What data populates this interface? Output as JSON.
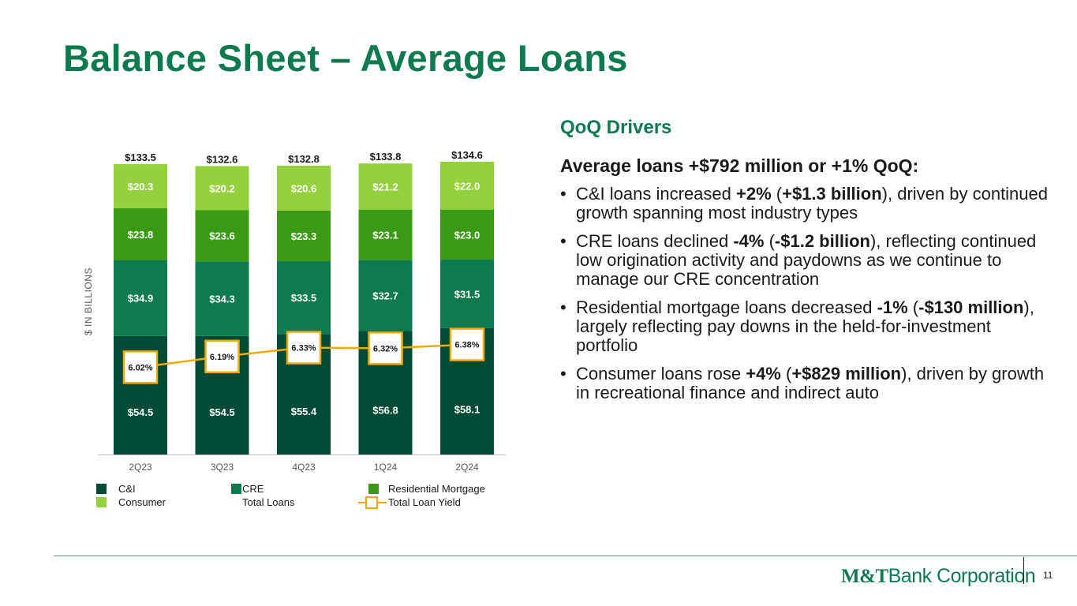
{
  "title": "Balance Sheet – Average Loans",
  "chart_data": {
    "type": "bar",
    "stacked": true,
    "ylabel": "$ IN BILLIONS",
    "categories": [
      "2Q23",
      "3Q23",
      "4Q23",
      "1Q24",
      "2Q24"
    ],
    "series": [
      {
        "name": "C&I",
        "color": "#004b35",
        "values": [
          54.5,
          54.5,
          55.4,
          56.8,
          58.1
        ]
      },
      {
        "name": "CRE",
        "color": "#0e7a4f",
        "values": [
          34.9,
          34.3,
          33.5,
          32.7,
          31.5
        ]
      },
      {
        "name": "Residential Mortgage",
        "color": "#3a9a14",
        "values": [
          23.8,
          23.6,
          23.3,
          23.1,
          23.0
        ]
      },
      {
        "name": "Consumer",
        "color": "#95d13c",
        "values": [
          20.3,
          20.2,
          20.6,
          21.2,
          22.0
        ]
      }
    ],
    "totals": {
      "name": "Total Loans",
      "values": [
        133.5,
        132.6,
        132.8,
        133.8,
        134.6
      ]
    },
    "yield": {
      "name": "Total Loan Yield",
      "color": "#f2a900",
      "values": [
        6.02,
        6.19,
        6.33,
        6.32,
        6.38
      ]
    },
    "value_labels": {
      "C&I": [
        "$54.5",
        "$54.5",
        "$55.4",
        "$56.8",
        "$58.1"
      ],
      "CRE": [
        "$34.9",
        "$34.3",
        "$33.5",
        "$32.7",
        "$31.5"
      ],
      "Residential Mortgage": [
        "$23.8",
        "$23.6",
        "$23.3",
        "$23.1",
        "$23.0"
      ],
      "Consumer": [
        "$20.3",
        "$20.2",
        "$20.6",
        "$21.2",
        "$22.0"
      ],
      "totals": [
        "$133.5",
        "$132.6",
        "$132.8",
        "$133.8",
        "$134.6"
      ],
      "yield": [
        "6.02%",
        "6.19%",
        "6.33%",
        "6.32%",
        "6.38%"
      ]
    },
    "ylim": [
      0,
      134.6
    ],
    "grid": false,
    "legend_position": "bottom"
  },
  "legend": {
    "items": [
      "C&I",
      "CRE",
      "Residential Mortgage",
      "Consumer",
      "Total Loans",
      "Total Loan Yield"
    ]
  },
  "drivers": {
    "title": "QoQ Drivers",
    "heading": "Average loans +$792 million or +1% QoQ:",
    "bullet_char": "•",
    "bullets": [
      {
        "pre": "C&I loans increased ",
        "b1": "+2%",
        "mid1": " (",
        "b2": "+$1.3 billion",
        "post": "), driven by continued growth spanning most industry types"
      },
      {
        "pre": "CRE loans declined ",
        "b1": "-4%",
        "mid1": " (",
        "b2": "-$1.2 billion",
        "post": "), reflecting continued low origination activity and paydowns as we continue to manage our CRE concentration"
      },
      {
        "pre": "Residential mortgage loans decreased ",
        "b1": "-1%",
        "mid1": " (",
        "b2": "-$130 million",
        "post": "), largely reflecting pay downs in the held-for-investment portfolio"
      },
      {
        "pre": "Consumer loans rose ",
        "b1": "+4%",
        "mid1": " (",
        "b2": "+$829 million",
        "post": "), driven by growth in recreational finance and indirect auto"
      }
    ]
  },
  "footer": {
    "logo_bold": "M&T",
    "logo_rest": "Bank Corporation",
    "page_number": "11"
  }
}
